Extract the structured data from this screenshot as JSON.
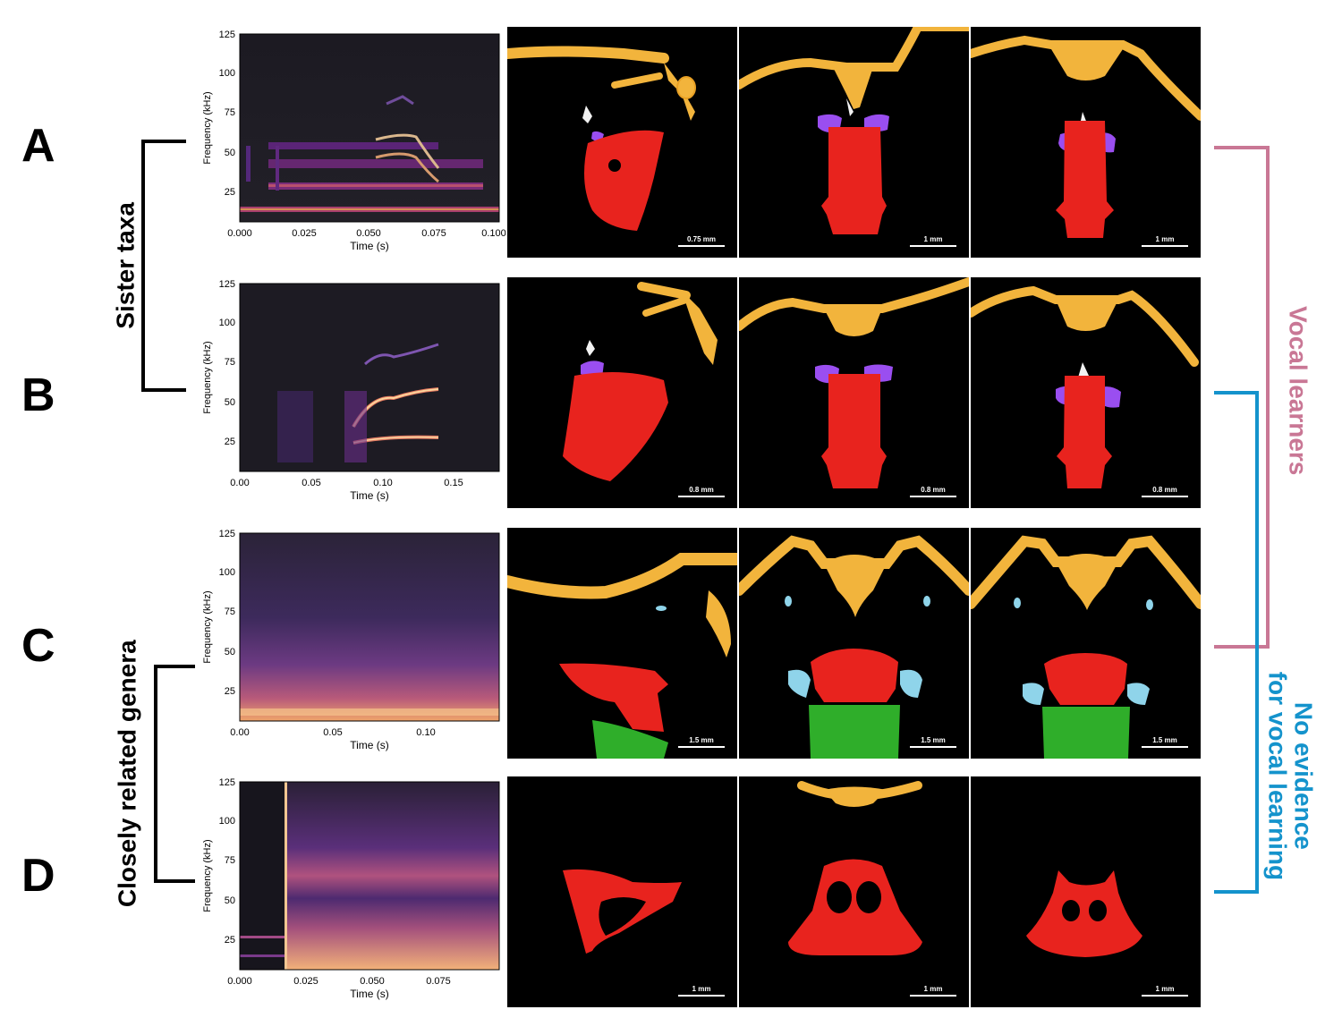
{
  "rows": [
    {
      "letter": "A",
      "spectrogram": {
        "ylabel": "Frequency (kHz)",
        "xlabel": "Time (s)",
        "yticks": [
          "125",
          "100",
          "75",
          "50",
          "25"
        ],
        "xticks": [
          "0.000",
          "0.025",
          "0.050",
          "0.075",
          "0.100"
        ]
      },
      "scale_bars": [
        "0.75 mm",
        "1 mm",
        "1 mm"
      ]
    },
    {
      "letter": "B",
      "spectrogram": {
        "ylabel": "Frequency (kHz)",
        "xlabel": "Time (s)",
        "yticks": [
          "125",
          "100",
          "75",
          "50",
          "25"
        ],
        "xticks": [
          "0.00",
          "0.05",
          "0.10",
          "0.15"
        ]
      },
      "scale_bars": [
        "0.8 mm",
        "0.8 mm",
        "0.8 mm"
      ]
    },
    {
      "letter": "C",
      "spectrogram": {
        "ylabel": "Frequency (kHz)",
        "xlabel": "Time (s)",
        "yticks": [
          "125",
          "100",
          "75",
          "50",
          "25"
        ],
        "xticks": [
          "0.00",
          "0.05",
          "0.10"
        ]
      },
      "scale_bars": [
        "1.5 mm",
        "1.5 mm",
        "1.5 mm"
      ]
    },
    {
      "letter": "D",
      "spectrogram": {
        "ylabel": "Frequency (kHz)",
        "xlabel": "Time (s)",
        "yticks": [
          "125",
          "100",
          "75",
          "50",
          "25"
        ],
        "xticks": [
          "0.000",
          "0.025",
          "0.050",
          "0.075"
        ]
      },
      "scale_bars": [
        "1 mm",
        "1 mm",
        "1 mm"
      ]
    }
  ],
  "labels": {
    "sister_taxa": "Sister taxa",
    "closely_related": "Closely related genera",
    "vocal_learners": "Vocal learners",
    "no_evidence_line1": "No evidence",
    "no_evidence_line2": "for vocal learning"
  },
  "colors": {
    "vocal_learners": "#c97795",
    "no_evidence": "#1493cc",
    "bone": "#f2b43c",
    "larynx": "#e8231e",
    "arytenoid": "#9a4ef0",
    "trachea": "#2fae2a",
    "cartilage": "#8fd4ea"
  }
}
